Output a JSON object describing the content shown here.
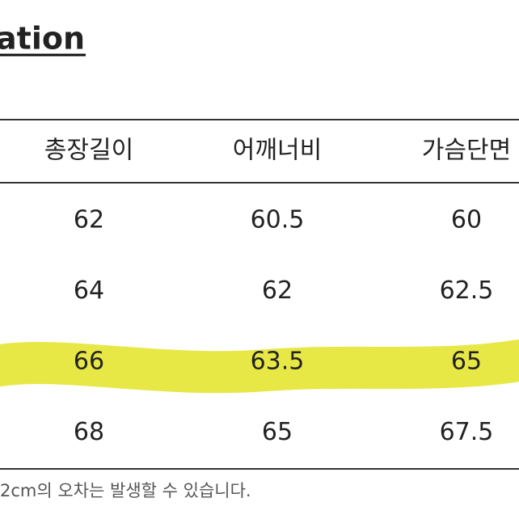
{
  "header": {
    "title": "nation"
  },
  "table": {
    "columns": [
      "총장길이",
      "어깨너비",
      "가슴단면"
    ],
    "rows": [
      [
        62,
        60.5,
        60
      ],
      [
        64,
        62,
        62.5
      ],
      [
        66,
        63.5,
        65
      ],
      [
        68,
        65,
        67.5
      ]
    ]
  },
  "footer": {
    "note": "2cm의 오차는 발생할 수 있습니다."
  }
}
